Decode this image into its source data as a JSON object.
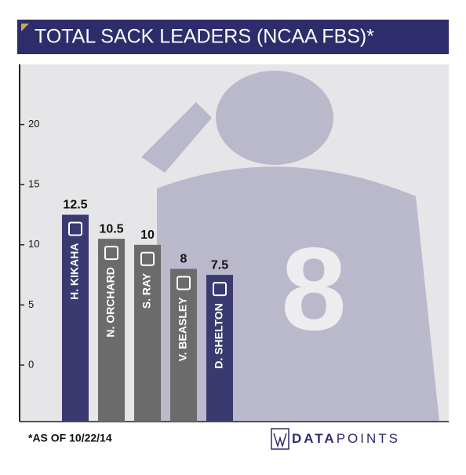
{
  "chart_data": {
    "type": "bar",
    "title": "TOTAL SACK LEADERS (NCAA FBS)*",
    "categories": [
      "H. KIKAHA",
      "N. ORCHARD",
      "S. RAY",
      "V. BEASLEY",
      "D. SHELTON"
    ],
    "values": [
      12.5,
      10.5,
      10,
      8,
      7.5
    ],
    "colors": [
      "#3b3a70",
      "#6b6b6b",
      "#6b6b6b",
      "#6b6b6b",
      "#3b3a70"
    ],
    "ylim": [
      -4.7,
      25
    ],
    "yticks": [
      0,
      5,
      10,
      15,
      20
    ]
  },
  "footer": {
    "note": "*AS OF 10/22/14",
    "brand_bold": "DATA",
    "brand": "POINTS"
  }
}
